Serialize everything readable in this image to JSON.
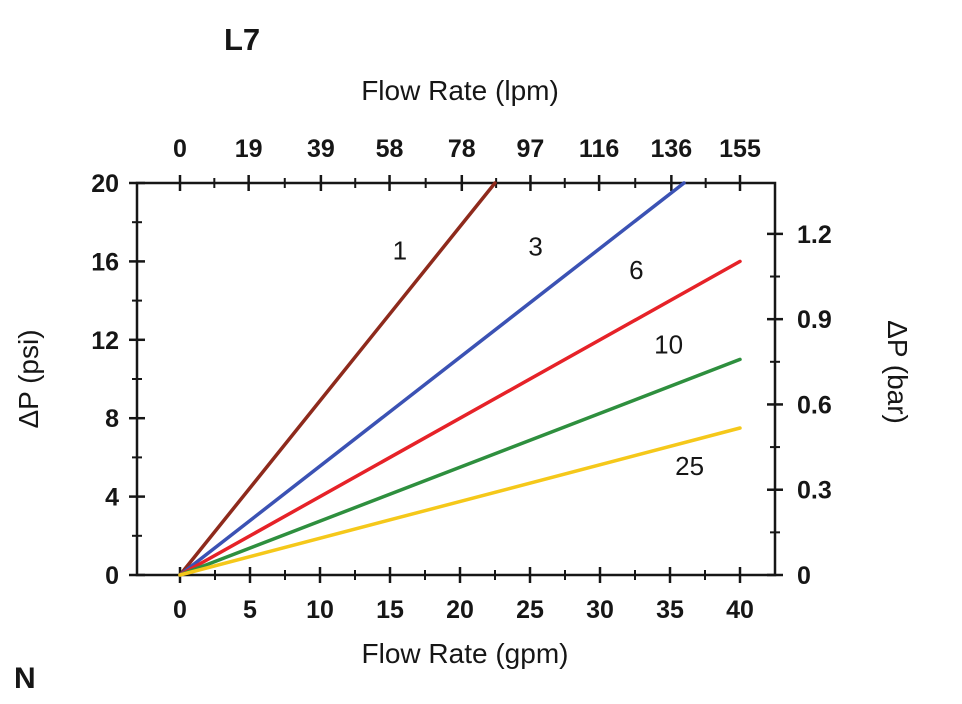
{
  "page": {
    "model_label": "L7",
    "corner_label": "N"
  },
  "chart_data": {
    "type": "line",
    "title": "L7",
    "grid": false,
    "legend": "inline curve labels",
    "axes": {
      "x_bottom": {
        "label": "Flow Rate (gpm)",
        "range": [
          0,
          40
        ],
        "ticks": [
          0,
          5,
          10,
          15,
          20,
          25,
          30,
          35,
          40
        ]
      },
      "x_top": {
        "label": "Flow Rate (lpm)",
        "range": [
          0,
          155
        ],
        "ticks": [
          0,
          19,
          39,
          58,
          78,
          97,
          116,
          136,
          155
        ]
      },
      "y_left": {
        "label": "ΔP (psi)",
        "range": [
          0,
          20
        ],
        "ticks": [
          0,
          4,
          8,
          12,
          16,
          20
        ]
      },
      "y_right": {
        "label": "ΔP (bar)",
        "range": [
          0,
          1.379
        ],
        "ticks": [
          0,
          0.3,
          0.6,
          0.9,
          1.2
        ]
      }
    },
    "series": [
      {
        "name": "1",
        "color": "#8e2a1c",
        "points": [
          [
            0,
            0
          ],
          [
            22.5,
            20
          ]
        ],
        "label_pos": [
          15.7,
          16.1
        ]
      },
      {
        "name": "3",
        "color": "#3b52b4",
        "points": [
          [
            0,
            0
          ],
          [
            36.0,
            20
          ]
        ],
        "label_pos": [
          25.4,
          16.3
        ]
      },
      {
        "name": "6",
        "color": "#e62228",
        "points": [
          [
            0,
            0
          ],
          [
            40.0,
            16
          ]
        ],
        "label_pos": [
          32.6,
          15.1
        ]
      },
      {
        "name": "10",
        "color": "#2e8f3e",
        "points": [
          [
            0,
            0
          ],
          [
            40.0,
            11
          ]
        ],
        "label_pos": [
          34.9,
          11.3
        ]
      },
      {
        "name": "25",
        "color": "#f5c81a",
        "points": [
          [
            0,
            0
          ],
          [
            40.0,
            7.5
          ]
        ],
        "label_pos": [
          36.4,
          5.1
        ]
      }
    ]
  }
}
